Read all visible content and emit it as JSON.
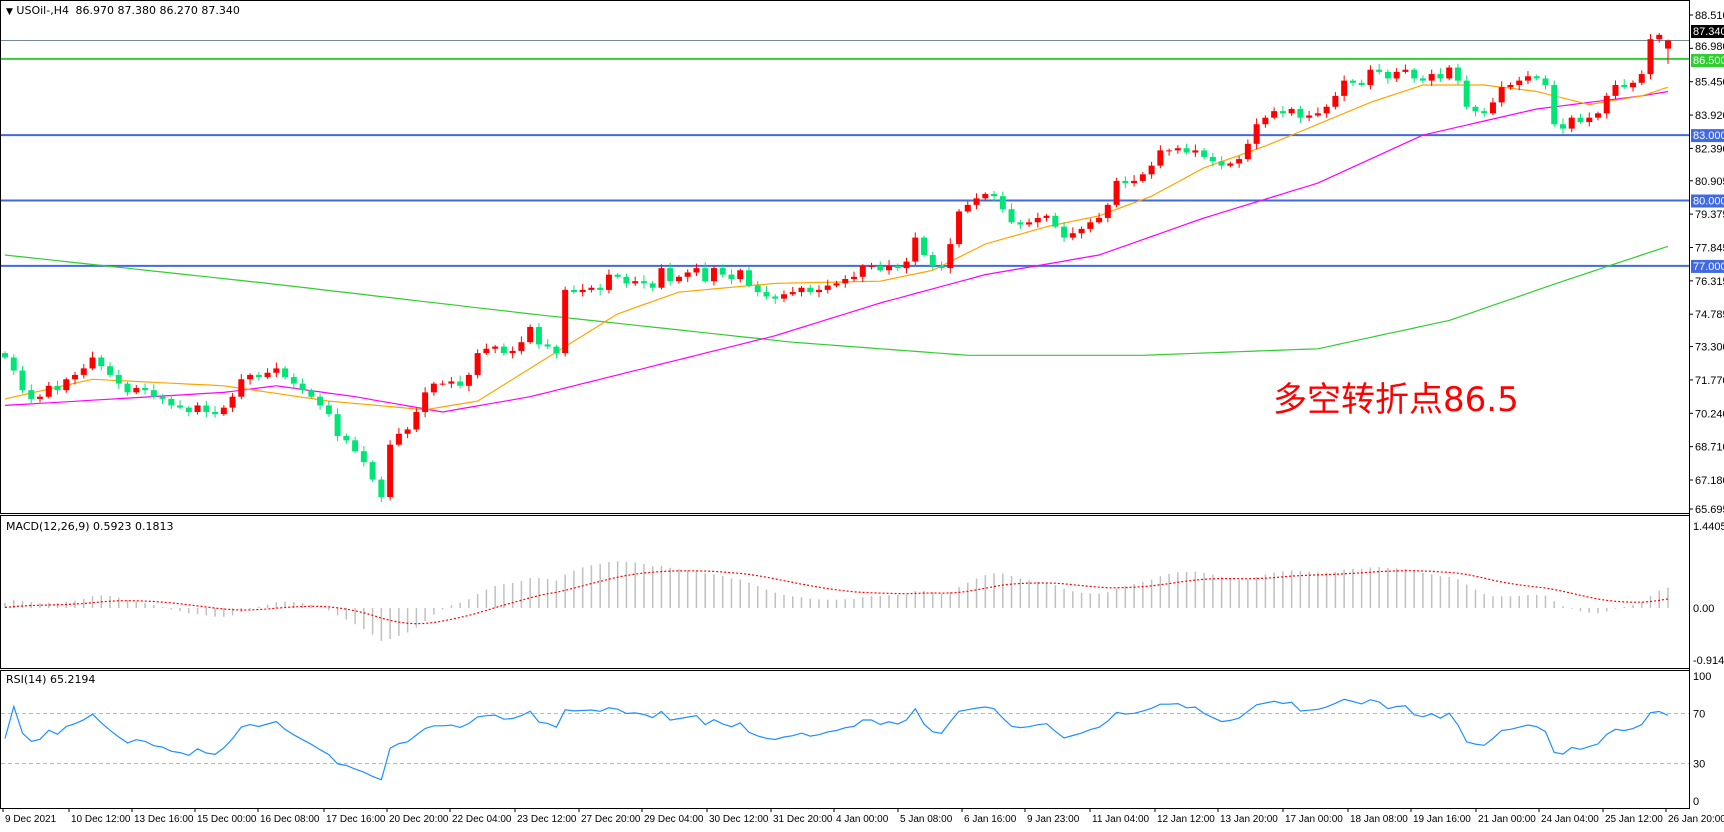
{
  "header": {
    "symbol": "USOil-,H4",
    "ohlc": "86.970 87.380 86.270 87.340",
    "menu_icon": "triangle-down-icon"
  },
  "annotation": "多空转折点86.5",
  "macd_label": "MACD(12,26,9) 0.5923 0.1813",
  "rsi_label": "RSI(14) 65.2194",
  "colors": {
    "bull": "#ff0000",
    "bear": "#00e676",
    "ma_fast": "#ffa500",
    "ma_mid": "#ff00ff",
    "ma_slow": "#32cd32",
    "level_line": "#4169e1",
    "pivot_line": "#32cd32",
    "bid_line": "#778899",
    "macd_hist": "#c0c0c0",
    "macd_signal": "#ff0000",
    "rsi": "#1e90ff"
  },
  "chart_data": {
    "type": "candlestick",
    "symbol": "USOil-",
    "timeframe": "H4",
    "price_axis_ticks": [
      "88.510",
      "86.980",
      "85.450",
      "83.920",
      "82.390",
      "80.905",
      "79.375",
      "77.845",
      "76.315",
      "74.785",
      "73.300",
      "71.770",
      "70.240",
      "68.710",
      "67.180",
      "65.695"
    ],
    "price_range": [
      65.695,
      88.51
    ],
    "time_axis_labels": [
      "9 Dec 2021",
      "10 Dec 12:00",
      "13 Dec 16:00",
      "15 Dec 00:00",
      "16 Dec 08:00",
      "17 Dec 16:00",
      "20 Dec 20:00",
      "22 Dec 04:00",
      "23 Dec 12:00",
      "27 Dec 20:00",
      "29 Dec 04:00",
      "30 Dec 12:00",
      "31 Dec 20:00",
      "4 Jan 00:00",
      "5 Jan 08:00",
      "6 Jan 16:00",
      "9 Jan 23:00",
      "11 Jan 04:00",
      "12 Jan 12:00",
      "13 Jan 20:00",
      "17 Jan 00:00",
      "18 Jan 08:00",
      "19 Jan 16:00",
      "21 Jan 00:00",
      "24 Jan 04:00",
      "25 Jan 12:00",
      "26 Jan 20:00"
    ],
    "closes": [
      72.8,
      72.2,
      71.3,
      70.9,
      71.0,
      71.5,
      71.3,
      71.8,
      72.0,
      72.3,
      72.8,
      72.4,
      72.0,
      71.6,
      71.2,
      71.4,
      71.3,
      71.0,
      70.9,
      70.6,
      70.5,
      70.3,
      70.6,
      70.3,
      70.2,
      70.5,
      71.0,
      71.8,
      72.0,
      71.9,
      72.1,
      72.3,
      71.9,
      71.6,
      71.3,
      71.0,
      70.6,
      70.2,
      69.2,
      69.0,
      68.5,
      68.0,
      67.2,
      66.4,
      68.8,
      69.3,
      69.5,
      70.3,
      71.2,
      71.6,
      71.6,
      71.7,
      71.5,
      72.0,
      73.0,
      73.2,
      73.3,
      73.0,
      73.1,
      73.5,
      74.2,
      73.4,
      73.3,
      73.0,
      75.9,
      75.8,
      75.9,
      76.0,
      75.9,
      76.6,
      76.5,
      76.2,
      76.3,
      76.2,
      76.0,
      76.9,
      76.3,
      76.5,
      76.7,
      76.9,
      76.3,
      76.9,
      76.6,
      76.4,
      76.8,
      76.1,
      75.8,
      75.6,
      75.5,
      75.7,
      75.8,
      76.0,
      75.8,
      75.9,
      76.1,
      76.2,
      76.4,
      76.5,
      77.0,
      77.0,
      76.8,
      77.0,
      76.9,
      77.2,
      78.3,
      77.5,
      77.0,
      76.9,
      78.0,
      79.5,
      79.8,
      80.1,
      80.3,
      80.2,
      79.6,
      79.0,
      78.9,
      79.0,
      79.2,
      79.3,
      78.8,
      78.3,
      78.5,
      78.7,
      79.0,
      79.2,
      79.8,
      80.9,
      80.8,
      80.9,
      81.2,
      81.6,
      82.3,
      82.3,
      82.4,
      82.2,
      82.3,
      82.0,
      81.8,
      81.6,
      81.7,
      81.9,
      82.6,
      83.5,
      83.8,
      84.1,
      84.0,
      84.2,
      83.8,
      83.9,
      84.0,
      84.3,
      84.8,
      85.5,
      85.4,
      85.3,
      86.0,
      85.9,
      85.6,
      85.9,
      86.0,
      85.6,
      85.5,
      85.8,
      85.6,
      86.1,
      85.5,
      84.3,
      84.1,
      84.0,
      84.5,
      85.2,
      85.3,
      85.5,
      85.7,
      85.6,
      85.3,
      83.5,
      83.3,
      83.8,
      83.6,
      83.8,
      84.0,
      84.8,
      85.3,
      85.2,
      85.4,
      85.8,
      87.4,
      87.6,
      87.34
    ],
    "last_bar": {
      "open": 86.97,
      "high": 87.38,
      "low": 86.27,
      "close": 87.34
    },
    "ma_fast": [
      [
        0,
        70.9
      ],
      [
        10,
        71.8
      ],
      [
        25,
        71.5
      ],
      [
        37,
        70.8
      ],
      [
        48,
        70.4
      ],
      [
        54,
        70.8
      ],
      [
        62,
        72.8
      ],
      [
        70,
        74.8
      ],
      [
        77,
        75.8
      ],
      [
        88,
        76.2
      ],
      [
        100,
        76.3
      ],
      [
        106,
        76.8
      ],
      [
        112,
        78.0
      ],
      [
        119,
        78.8
      ],
      [
        125,
        79.3
      ],
      [
        131,
        80.2
      ],
      [
        137,
        81.5
      ],
      [
        144,
        82.5
      ],
      [
        150,
        83.5
      ],
      [
        156,
        84.5
      ],
      [
        162,
        85.3
      ],
      [
        169,
        85.3
      ],
      [
        175,
        85.0
      ],
      [
        181,
        84.4
      ],
      [
        187,
        84.8
      ],
      [
        190,
        85.2
      ]
    ],
    "ma_mid": [
      [
        0,
        70.6
      ],
      [
        25,
        71.2
      ],
      [
        31,
        71.5
      ],
      [
        40,
        71.0
      ],
      [
        50,
        70.3
      ],
      [
        60,
        71.0
      ],
      [
        75,
        72.5
      ],
      [
        88,
        73.8
      ],
      [
        100,
        75.3
      ],
      [
        112,
        76.6
      ],
      [
        125,
        77.5
      ],
      [
        137,
        79.2
      ],
      [
        150,
        80.8
      ],
      [
        162,
        83.0
      ],
      [
        175,
        84.2
      ],
      [
        187,
        84.8
      ],
      [
        190,
        85.0
      ]
    ],
    "ma_slow": [
      [
        0,
        77.5
      ],
      [
        30,
        76.2
      ],
      [
        60,
        74.8
      ],
      [
        90,
        73.5
      ],
      [
        110,
        72.9
      ],
      [
        130,
        72.9
      ],
      [
        150,
        73.2
      ],
      [
        165,
        74.5
      ],
      [
        178,
        76.3
      ],
      [
        190,
        77.9
      ]
    ],
    "levels": [
      {
        "price": 87.34,
        "label": "87.340",
        "kind": "bid"
      },
      {
        "price": 86.5,
        "label": "86.500",
        "kind": "pivot"
      },
      {
        "price": 83.0,
        "label": "83.000",
        "kind": "level"
      },
      {
        "price": 80.0,
        "label": "80.000",
        "kind": "level"
      },
      {
        "price": 77.0,
        "label": "77.000",
        "kind": "level"
      }
    ],
    "macd": {
      "params": [
        12,
        26,
        9
      ],
      "main": 0.5923,
      "signal": 0.1813,
      "axis_labels": [
        "1.4405",
        "0.00",
        "-0.9144"
      ],
      "range": [
        -0.9144,
        1.4405
      ]
    },
    "rsi": {
      "period": 14,
      "value": 65.2194,
      "axis_labels": [
        "100",
        "70",
        "30",
        "0"
      ],
      "levels": [
        70,
        30
      ],
      "range": [
        0,
        100
      ]
    }
  }
}
